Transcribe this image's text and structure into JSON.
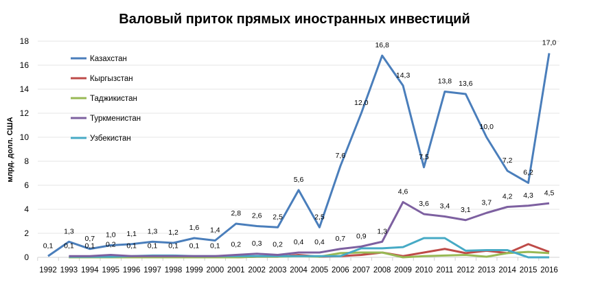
{
  "chart_data": {
    "type": "line",
    "title": "Валовый приток прямых иностранных инвестиций",
    "ylabel": "млрд. долл. США",
    "xlabel": "",
    "ylim": [
      0,
      18
    ],
    "yticks": [
      0,
      2,
      4,
      6,
      8,
      10,
      12,
      14,
      16,
      18
    ],
    "grid": true,
    "legend": "top-left",
    "categories": [
      "1992",
      "1993",
      "1994",
      "1995",
      "1996",
      "1997",
      "1998",
      "1999",
      "2000",
      "2001",
      "2002",
      "2003",
      "2004",
      "2005",
      "2006",
      "2007",
      "2008",
      "2009",
      "2010",
      "2011",
      "2012",
      "2013",
      "2014",
      "2015",
      "2016"
    ],
    "series": [
      {
        "name": "Казахстан",
        "color": "#4a7ebb",
        "labeled": true,
        "values": [
          0.1,
          1.3,
          0.7,
          1.0,
          1.1,
          1.3,
          1.2,
          1.6,
          1.4,
          2.8,
          2.6,
          2.5,
          5.6,
          2.5,
          7.6,
          12.0,
          16.8,
          14.3,
          7.5,
          13.8,
          13.6,
          10.0,
          7.2,
          6.2,
          17.0
        ]
      },
      {
        "name": "Кыргызстан",
        "color": "#be4b48",
        "labeled": false,
        "values": [
          null,
          0.0,
          0.05,
          0.1,
          0.05,
          0.1,
          0.1,
          0.05,
          0.0,
          0.0,
          0.05,
          0.05,
          0.2,
          0.05,
          0.1,
          0.2,
          0.4,
          0.1,
          0.4,
          0.7,
          0.35,
          0.55,
          0.35,
          1.1,
          0.45
        ]
      },
      {
        "name": "Таджикистан",
        "color": "#98b954",
        "labeled": false,
        "values": [
          null,
          0.0,
          0.0,
          0.0,
          0.0,
          0.0,
          0.0,
          0.0,
          0.0,
          0.0,
          0.05,
          0.05,
          0.1,
          0.05,
          0.35,
          0.4,
          0.4,
          0.0,
          0.1,
          0.15,
          0.2,
          0.05,
          0.35,
          0.45,
          0.35
        ]
      },
      {
        "name": "Туркменистан",
        "color": "#7d60a0",
        "labeled": true,
        "values": [
          null,
          0.1,
          0.1,
          0.2,
          0.1,
          0.1,
          0.1,
          0.1,
          0.1,
          0.2,
          0.3,
          0.2,
          0.4,
          0.4,
          0.7,
          0.9,
          1.3,
          4.6,
          3.6,
          3.4,
          3.1,
          3.7,
          4.2,
          4.3,
          4.5
        ]
      },
      {
        "name": "Узбекистан",
        "color": "#46aac5",
        "labeled": false,
        "values": [
          null,
          0.05,
          0.05,
          0.05,
          0.1,
          0.15,
          0.15,
          0.1,
          0.1,
          0.1,
          0.1,
          0.1,
          0.1,
          0.1,
          0.1,
          0.75,
          0.75,
          0.85,
          1.6,
          1.6,
          0.55,
          0.6,
          0.6,
          0.0,
          0.0
        ]
      }
    ]
  }
}
